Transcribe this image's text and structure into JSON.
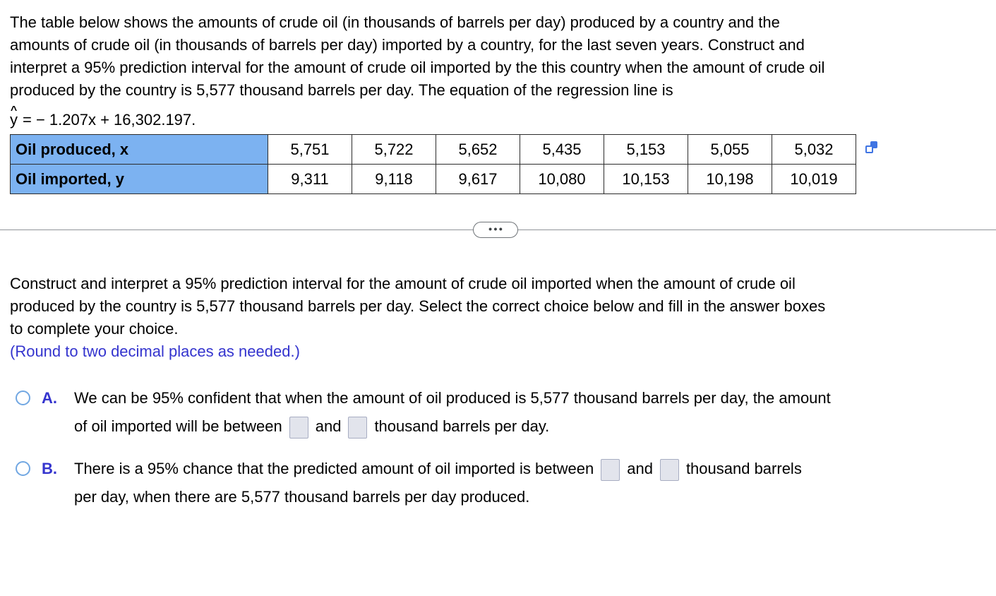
{
  "problem": {
    "lines": [
      "The table below shows the amounts of crude oil (in thousands of barrels per day) produced by a country and the",
      "amounts of crude oil (in thousands of barrels per day) imported by a country, for the last seven years. Construct and",
      "interpret a 95% prediction interval for the amount of crude oil imported by the this country when the amount of crude oil",
      "produced by the country is 5,577 thousand barrels per day. The equation of the regression line is"
    ],
    "equation": {
      "hat": "^",
      "variable": "y",
      "expression": "= − 1.207x + 16,302.197."
    }
  },
  "table": {
    "rows": [
      {
        "label": "Oil produced, x",
        "values": [
          "5,751",
          "5,722",
          "5,652",
          "5,435",
          "5,153",
          "5,055",
          "5,032"
        ]
      },
      {
        "label": "Oil imported, y",
        "values": [
          "9,311",
          "9,118",
          "9,617",
          "10,080",
          "10,153",
          "10,198",
          "10,019"
        ]
      }
    ]
  },
  "divider": {
    "ellipsis": "•••"
  },
  "question": {
    "lines": [
      "Construct and interpret a 95% prediction interval for the amount of crude oil imported when the amount of crude oil",
      "produced by the country is 5,577 thousand barrels per day. Select the correct choice below and fill in the answer boxes",
      "to complete your choice."
    ],
    "note": "(Round to two decimal places as needed.)"
  },
  "choice_a": {
    "letter": "A.",
    "line1": "We can be 95% confident that when the amount of oil produced is 5,577 thousand barrels per day, the amount",
    "line2_before": "of oil imported will be between",
    "and_label": "and",
    "line2_after": "thousand barrels per day."
  },
  "choice_b": {
    "letter": "B.",
    "line1_before": "There is a 95% chance that the predicted amount of oil imported is between",
    "and_label": "and",
    "line1_after": "thousand barrels",
    "line2": "per day, when there are 5,577 thousand barrels per day produced."
  },
  "colors": {
    "table_header_blue": "#7cb2f1",
    "accent_blue": "#3434ce",
    "radio_border_blue": "#71a7e2",
    "copy_icon_blue": "#3f74e3",
    "answer_box_fill": "#e2e4ec",
    "table_border": "#2b2b2b"
  }
}
